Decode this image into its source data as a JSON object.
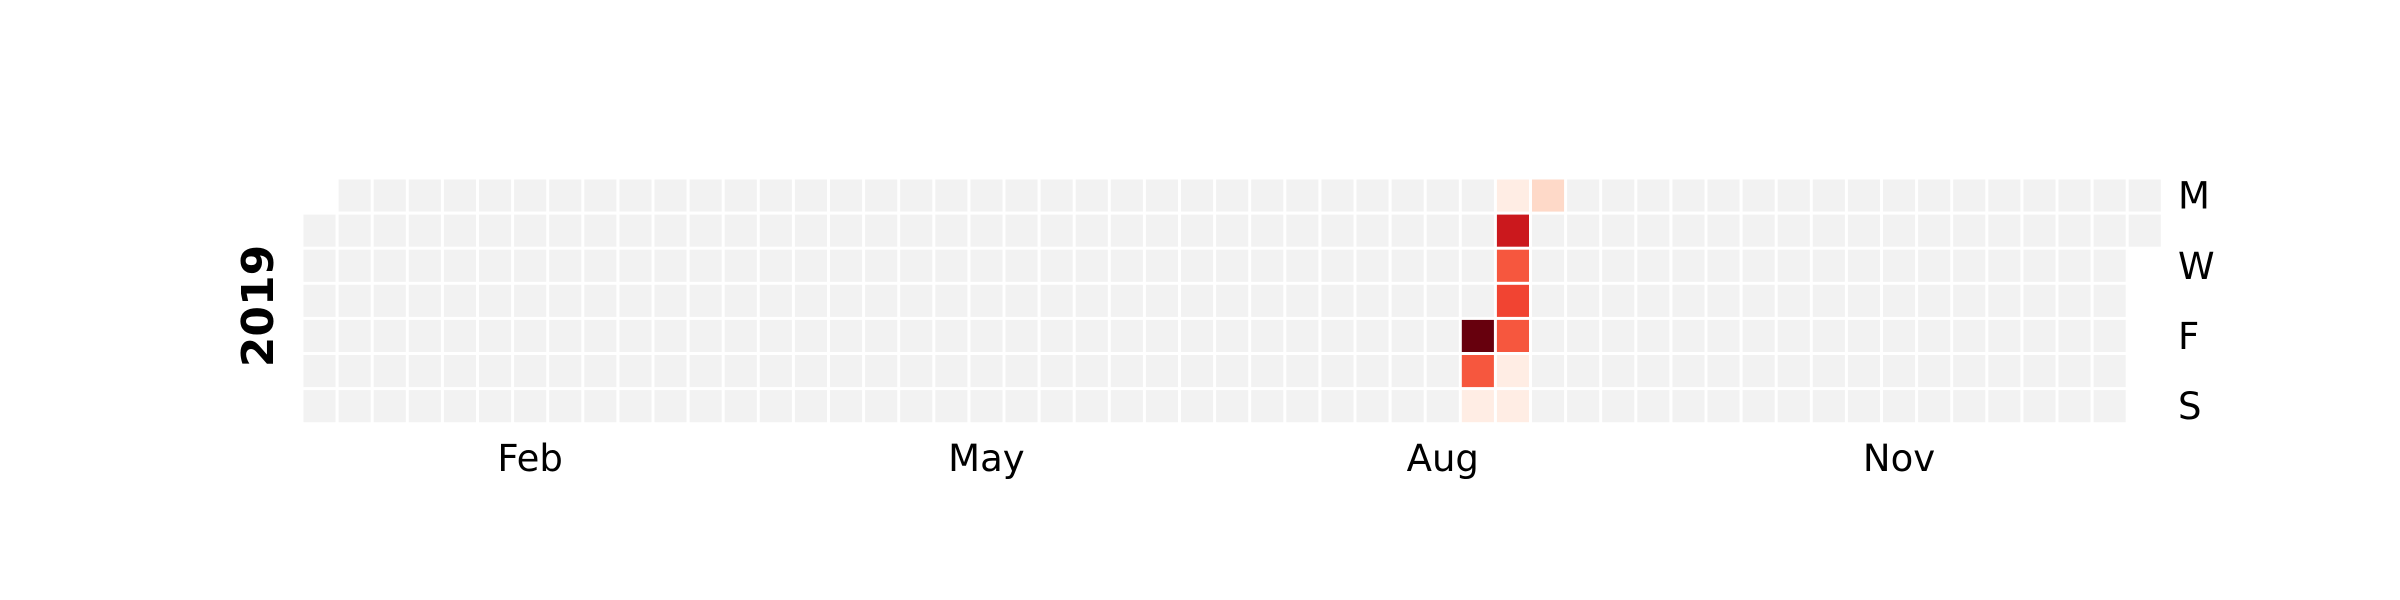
{
  "chart_data": {
    "type": "heatmap",
    "subtype": "calendar",
    "year_label": "2019",
    "year": 2019,
    "start_date": "2019-01-01",
    "end_date": "2019-12-31",
    "weekday_labels": [
      "M",
      "W",
      "F",
      "S"
    ],
    "weekday_label_rows": [
      0,
      2,
      4,
      6
    ],
    "month_labels": [
      "Feb",
      "May",
      "Aug",
      "Nov"
    ],
    "month_label_dates": [
      "2019-02-15",
      "2019-05-15",
      "2019-08-15",
      "2019-11-15"
    ],
    "colormap": "Reds",
    "empty_color": "#f2f2f2",
    "cell_edge_color": "#ffffff",
    "legend": false,
    "values": [
      {
        "date": "2019-08-23",
        "value": 10
      },
      {
        "date": "2019-08-24",
        "value": 5.5
      },
      {
        "date": "2019-08-25",
        "value": 0.5
      },
      {
        "date": "2019-08-26",
        "value": 0.5
      },
      {
        "date": "2019-08-27",
        "value": 7.5
      },
      {
        "date": "2019-08-28",
        "value": 5.5
      },
      {
        "date": "2019-08-29",
        "value": 6
      },
      {
        "date": "2019-08-30",
        "value": 5.5
      },
      {
        "date": "2019-08-31",
        "value": 0.5
      },
      {
        "date": "2019-09-01",
        "value": 0.5
      },
      {
        "date": "2019-09-02",
        "value": 1.5
      }
    ],
    "value_range": [
      0,
      10
    ]
  }
}
